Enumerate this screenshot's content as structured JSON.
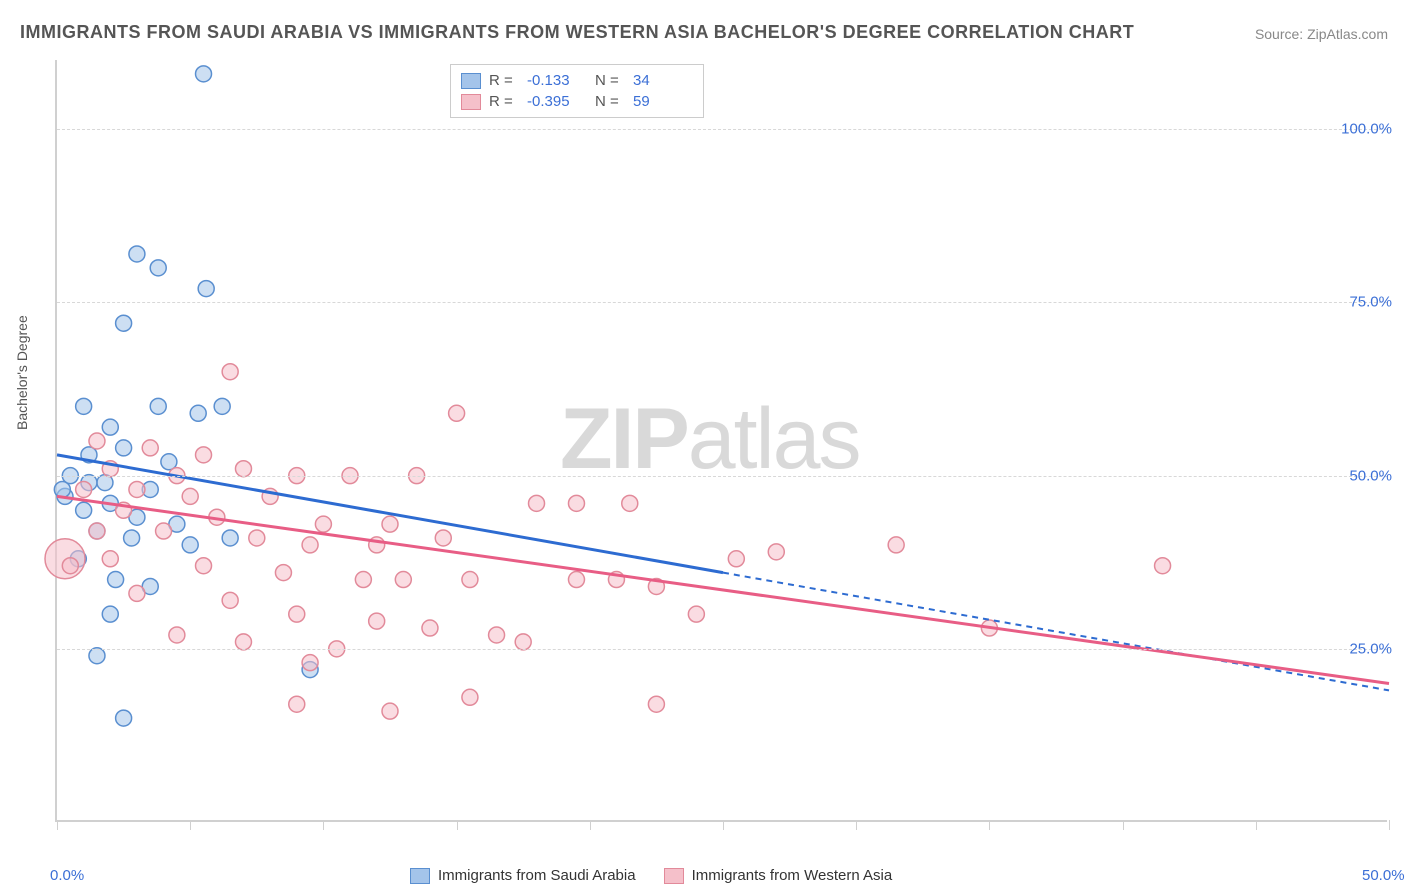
{
  "title": "IMMIGRANTS FROM SAUDI ARABIA VS IMMIGRANTS FROM WESTERN ASIA BACHELOR'S DEGREE CORRELATION CHART",
  "source": "Source: ZipAtlas.com",
  "ylabel": "Bachelor's Degree",
  "watermark_bold": "ZIP",
  "watermark_light": "atlas",
  "chart": {
    "type": "scatter",
    "xlim": [
      0,
      50
    ],
    "ylim": [
      0,
      110
    ],
    "xtick_positions": [
      0,
      5,
      10,
      15,
      20,
      25,
      30,
      35,
      40,
      45,
      50
    ],
    "xtick_labels": {
      "0": "0.0%",
      "50": "50.0%"
    },
    "ytick_positions": [
      25,
      50,
      75,
      100
    ],
    "ytick_labels": {
      "25": "25.0%",
      "50": "50.0%",
      "75": "75.0%",
      "100": "100.0%"
    },
    "background_color": "#ffffff",
    "grid_color": "#d8d8d8",
    "axis_color": "#d0d0d0",
    "marker_radius": 8,
    "marker_opacity": 0.55,
    "series": [
      {
        "name": "Immigrants from Saudi Arabia",
        "fill_color": "#a4c4ea",
        "stroke_color": "#5a8fd0",
        "line_color": "#2d6bd1",
        "R": "-0.133",
        "N": "34",
        "trend": {
          "x1": 0,
          "y1": 53,
          "x2": 25,
          "y2": 36,
          "dash_to_x": 50,
          "dash_to_y": 19
        },
        "points": [
          [
            5.5,
            108
          ],
          [
            3.0,
            82
          ],
          [
            3.8,
            80
          ],
          [
            5.6,
            77
          ],
          [
            2.5,
            72
          ],
          [
            1.0,
            60
          ],
          [
            2.0,
            57
          ],
          [
            3.8,
            60
          ],
          [
            5.3,
            59
          ],
          [
            6.2,
            60
          ],
          [
            1.2,
            53
          ],
          [
            2.5,
            54
          ],
          [
            0.5,
            50
          ],
          [
            1.8,
            49
          ],
          [
            3.5,
            48
          ],
          [
            1.0,
            45
          ],
          [
            2.0,
            46
          ],
          [
            3.0,
            44
          ],
          [
            4.5,
            43
          ],
          [
            0.3,
            47
          ],
          [
            1.5,
            42
          ],
          [
            2.8,
            41
          ],
          [
            5.0,
            40
          ],
          [
            6.5,
            41
          ],
          [
            0.8,
            38
          ],
          [
            2.2,
            35
          ],
          [
            3.5,
            34
          ],
          [
            2.0,
            30
          ],
          [
            1.5,
            24
          ],
          [
            9.5,
            22
          ],
          [
            2.5,
            15
          ],
          [
            0.2,
            48
          ],
          [
            4.2,
            52
          ],
          [
            1.2,
            49
          ]
        ]
      },
      {
        "name": "Immigrants from Western Asia",
        "fill_color": "#f5c0ca",
        "stroke_color": "#e28a9a",
        "line_color": "#e85d85",
        "R": "-0.395",
        "N": "59",
        "trend": {
          "x1": 0,
          "y1": 47,
          "x2": 50,
          "y2": 20
        },
        "points": [
          [
            6.5,
            65
          ],
          [
            15.0,
            59
          ],
          [
            1.5,
            55
          ],
          [
            3.5,
            54
          ],
          [
            5.5,
            53
          ],
          [
            2.0,
            51
          ],
          [
            4.5,
            50
          ],
          [
            7.0,
            51
          ],
          [
            9.0,
            50
          ],
          [
            11.0,
            50
          ],
          [
            13.5,
            50
          ],
          [
            1.0,
            48
          ],
          [
            3.0,
            48
          ],
          [
            5.0,
            47
          ],
          [
            8.0,
            47
          ],
          [
            2.5,
            45
          ],
          [
            6.0,
            44
          ],
          [
            10.0,
            43
          ],
          [
            12.5,
            43
          ],
          [
            18.0,
            46
          ],
          [
            19.5,
            46
          ],
          [
            21.5,
            46
          ],
          [
            1.5,
            42
          ],
          [
            4.0,
            42
          ],
          [
            7.5,
            41
          ],
          [
            9.5,
            40
          ],
          [
            12.0,
            40
          ],
          [
            14.5,
            41
          ],
          [
            2.0,
            38
          ],
          [
            5.5,
            37
          ],
          [
            8.5,
            36
          ],
          [
            11.5,
            35
          ],
          [
            13.0,
            35
          ],
          [
            15.5,
            35
          ],
          [
            3.0,
            33
          ],
          [
            6.5,
            32
          ],
          [
            9.0,
            30
          ],
          [
            12.0,
            29
          ],
          [
            14.0,
            28
          ],
          [
            16.5,
            27
          ],
          [
            4.5,
            27
          ],
          [
            7.0,
            26
          ],
          [
            10.5,
            25
          ],
          [
            17.5,
            26
          ],
          [
            24.0,
            30
          ],
          [
            25.5,
            38
          ],
          [
            27.0,
            39
          ],
          [
            31.5,
            40
          ],
          [
            35.0,
            28
          ],
          [
            41.5,
            37
          ],
          [
            22.5,
            34
          ],
          [
            19.5,
            35
          ],
          [
            9.0,
            17
          ],
          [
            12.5,
            16
          ],
          [
            15.5,
            18
          ],
          [
            9.5,
            23
          ],
          [
            22.5,
            17
          ],
          [
            21.0,
            35
          ],
          [
            0.5,
            37
          ]
        ],
        "big_points": [
          [
            0.3,
            38,
            20
          ]
        ]
      }
    ]
  },
  "legend_bottom": [
    {
      "label": "Immigrants from Saudi Arabia",
      "fill": "#a4c4ea",
      "stroke": "#5a8fd0"
    },
    {
      "label": "Immigrants from Western Asia",
      "fill": "#f5c0ca",
      "stroke": "#e28a9a"
    }
  ]
}
